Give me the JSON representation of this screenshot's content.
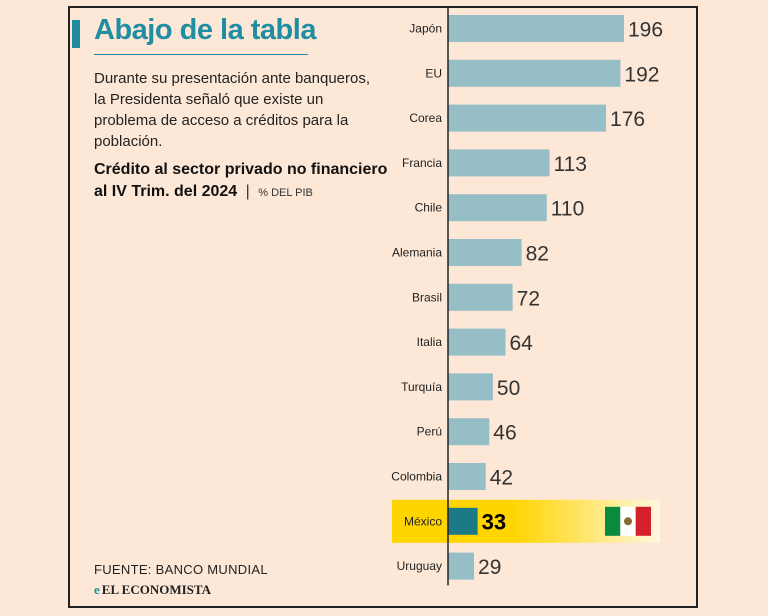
{
  "header": {
    "title": "Abajo de la tabla",
    "description": "Durante su presentación ante banqueros, la Presidenta señaló que existe un problema de acceso a créditos para la población.",
    "subtitle_main": "Crédito al sector privado no financiero al IV Trim. del 2024",
    "subtitle_sep": "|",
    "subtitle_unit": "% DEL PIB"
  },
  "footer": {
    "source": "FUENTE: BANCO MUNDIAL",
    "logo_mark": "e",
    "logo_text": "EL ECONOMISTA"
  },
  "colors": {
    "bar": "#96bec6",
    "highlight_bar": "#1b7a86",
    "highlight_band": "#ffd500",
    "title": "#1f8ea2",
    "background": "#fde8d7"
  },
  "chart_data": {
    "type": "bar",
    "orientation": "horizontal",
    "categories": [
      "Japón",
      "EU",
      "Corea",
      "Francia",
      "Chile",
      "Alemania",
      "Brasil",
      "Italia",
      "Turquía",
      "Perú",
      "Colombia",
      "México",
      "Uruguay"
    ],
    "values": [
      196,
      192,
      176,
      113,
      110,
      82,
      72,
      64,
      50,
      46,
      42,
      33,
      29
    ],
    "highlight": "México",
    "xlim": [
      0,
      196
    ],
    "grid": false,
    "legend": "none"
  }
}
